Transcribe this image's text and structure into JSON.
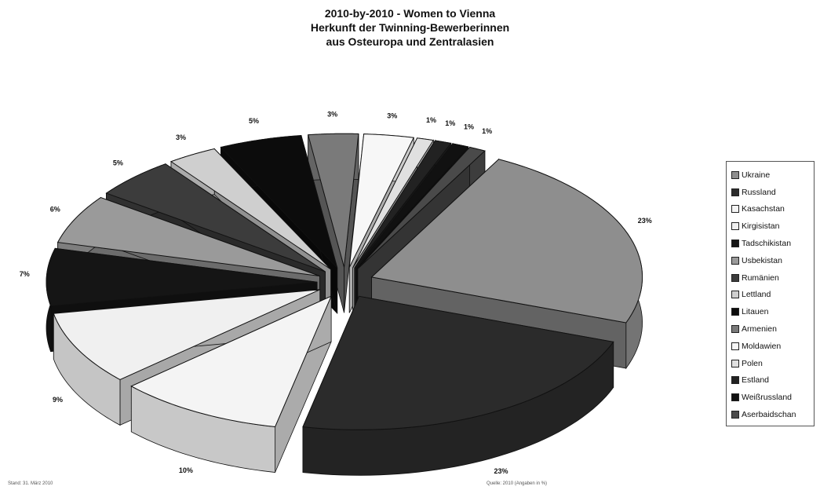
{
  "title": {
    "line1": "2010-by-2010 - Women to Vienna",
    "line2": "Herkunft der Twinning-Bewerberinnen",
    "line3": "aus Osteuropa und Zentralasien"
  },
  "footer": {
    "left": "Stand: 31. März 2010",
    "right": "Quelle: 2010 (Angaben in %)"
  },
  "chart_data": {
    "type": "pie",
    "title": "2010-by-2010 - Women to Vienna\nHerkunft der Twinning-Bewerberinnen\naus Osteuropa und Zentralasien",
    "legend_position": "right",
    "labels": [
      "Ukraine",
      "Russland",
      "Kasachstan",
      "Kirgisistan",
      "Tadschikistan",
      "Usbekistan",
      "Rumänien",
      "Lettland",
      "Litauen",
      "Armenien",
      "Moldawien",
      "Polen",
      "Estland",
      "Weißrussland",
      "Aserbaidschan"
    ],
    "values": [
      23,
      23,
      10,
      9,
      7,
      6,
      5,
      3,
      5,
      3,
      3,
      1,
      1,
      1,
      1
    ],
    "value_labels": [
      "23%",
      "23%",
      "10%",
      "9%",
      "7%",
      "6%",
      "5%",
      "3%",
      "5%",
      "3%",
      "3%",
      "1%",
      "1%",
      "1%",
      "1%"
    ],
    "colors": [
      "#8e8e8e",
      "#2b2b2b",
      "#f4f4f4",
      "#f0f0f0",
      "#151515",
      "#9a9a9a",
      "#3c3c3c",
      "#cfcfcf",
      "#0c0c0c",
      "#7a7a7a",
      "#f7f7f7",
      "#e0e0e0",
      "#222222",
      "#111111",
      "#4a4a4a"
    ],
    "exploded": true,
    "three_d": true
  }
}
